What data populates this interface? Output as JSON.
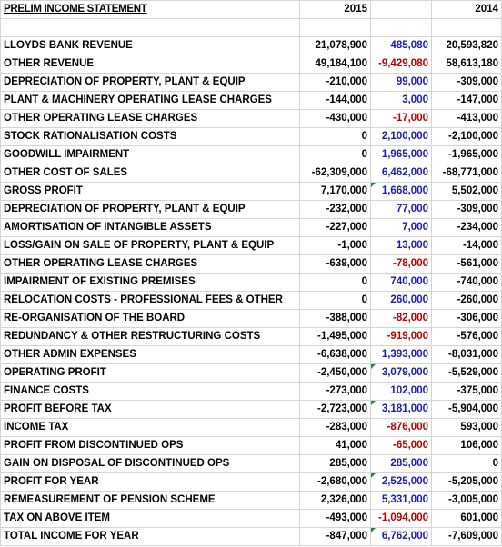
{
  "header": {
    "title": "PRELIM INCOME STATEMENT",
    "col_2015": "2015",
    "col_2014": "2014"
  },
  "rows": [
    {
      "label": "LLOYDS BANK REVENUE",
      "v2015": "21,078,900",
      "diff": "485,080",
      "diff_sign": "pos",
      "v2014": "20,593,820",
      "flag": false
    },
    {
      "label": "OTHER REVENUE",
      "v2015": "49,184,100",
      "diff": "-9,429,080",
      "diff_sign": "neg",
      "v2014": "58,613,180",
      "flag": false
    },
    {
      "label": "DEPRECIATION OF PROPERTY, PLANT & EQUIP",
      "v2015": "-210,000",
      "diff": "99,000",
      "diff_sign": "pos",
      "v2014": "-309,000",
      "flag": false
    },
    {
      "label": "PLANT & MACHINERY OPERATING LEASE CHARGES",
      "v2015": "-144,000",
      "diff": "3,000",
      "diff_sign": "pos",
      "v2014": "-147,000",
      "flag": false
    },
    {
      "label": "OTHER OPERATING LEASE CHARGES",
      "v2015": "-430,000",
      "diff": "-17,000",
      "diff_sign": "neg",
      "v2014": "-413,000",
      "flag": false
    },
    {
      "label": "STOCK RATIONALISATION COSTS",
      "v2015": "0",
      "diff": "2,100,000",
      "diff_sign": "pos",
      "v2014": "-2,100,000",
      "flag": false
    },
    {
      "label": "GOODWILL IMPAIRMENT",
      "v2015": "0",
      "diff": "1,965,000",
      "diff_sign": "pos",
      "v2014": "-1,965,000",
      "flag": false
    },
    {
      "label": "OTHER COST OF SALES",
      "v2015": "-62,309,000",
      "diff": "6,462,000",
      "diff_sign": "pos",
      "v2014": "-68,771,000",
      "flag": false
    },
    {
      "label": "GROSS PROFIT",
      "v2015": "7,170,000",
      "diff": "1,668,000",
      "diff_sign": "pos",
      "v2014": "5,502,000",
      "flag": true
    },
    {
      "label": "DEPRECIATION OF PROPERTY, PLANT & EQUIP",
      "v2015": "-232,000",
      "diff": "77,000",
      "diff_sign": "pos",
      "v2014": "-309,000",
      "flag": false
    },
    {
      "label": "AMORTISATION OF INTANGIBLE ASSETS",
      "v2015": "-227,000",
      "diff": "7,000",
      "diff_sign": "pos",
      "v2014": "-234,000",
      "flag": false
    },
    {
      "label": "LOSS/GAIN ON SALE OF PROPERTY, PLANT & EQUIP",
      "v2015": "-1,000",
      "diff": "13,000",
      "diff_sign": "pos",
      "v2014": "-14,000",
      "flag": false
    },
    {
      "label": "OTHER OPERATING LEASE CHARGES",
      "v2015": "-639,000",
      "diff": "-78,000",
      "diff_sign": "neg",
      "v2014": "-561,000",
      "flag": false
    },
    {
      "label": "IMPAIRMENT OF EXISTING PREMISES",
      "v2015": "0",
      "diff": "740,000",
      "diff_sign": "pos",
      "v2014": "-740,000",
      "flag": false
    },
    {
      "label": "RELOCATION COSTS - PROFESSIONAL FEES & OTHER",
      "v2015": "0",
      "diff": "260,000",
      "diff_sign": "pos",
      "v2014": "-260,000",
      "flag": false
    },
    {
      "label": "RE-ORGANISATION OF THE BOARD",
      "v2015": "-388,000",
      "diff": "-82,000",
      "diff_sign": "neg",
      "v2014": "-306,000",
      "flag": false
    },
    {
      "label": "REDUNDANCY & OTHER RESTRUCTURING COSTS",
      "v2015": "-1,495,000",
      "diff": "-919,000",
      "diff_sign": "neg",
      "v2014": "-576,000",
      "flag": false
    },
    {
      "label": "OTHER ADMIN EXPENSES",
      "v2015": "-6,638,000",
      "diff": "1,393,000",
      "diff_sign": "pos",
      "v2014": "-8,031,000",
      "flag": false
    },
    {
      "label": "OPERATING PROFIT",
      "v2015": "-2,450,000",
      "diff": "3,079,000",
      "diff_sign": "pos",
      "v2014": "-5,529,000",
      "flag": true
    },
    {
      "label": "FINANCE COSTS",
      "v2015": "-273,000",
      "diff": "102,000",
      "diff_sign": "pos",
      "v2014": "-375,000",
      "flag": false
    },
    {
      "label": "PROFIT BEFORE TAX",
      "v2015": "-2,723,000",
      "diff": "3,181,000",
      "diff_sign": "pos",
      "v2014": "-5,904,000",
      "flag": true
    },
    {
      "label": "INCOME TAX",
      "v2015": "-283,000",
      "diff": "-876,000",
      "diff_sign": "neg",
      "v2014": "593,000",
      "flag": false
    },
    {
      "label": "PROFIT FROM DISCONTINUED OPS",
      "v2015": "41,000",
      "diff": "-65,000",
      "diff_sign": "neg",
      "v2014": "106,000",
      "flag": false
    },
    {
      "label": "GAIN ON DISPOSAL OF DISCONTINUED OPS",
      "v2015": "285,000",
      "diff": "285,000",
      "diff_sign": "pos",
      "v2014": "0",
      "flag": false
    },
    {
      "label": "PROFIT FOR YEAR",
      "v2015": "-2,680,000",
      "diff": "2,525,000",
      "diff_sign": "pos",
      "v2014": "-5,205,000",
      "flag": true
    },
    {
      "label": "REMEASUREMENT OF PENSION SCHEME",
      "v2015": "2,326,000",
      "diff": "5,331,000",
      "diff_sign": "pos",
      "v2014": "-3,005,000",
      "flag": false
    },
    {
      "label": "TAX ON ABOVE ITEM",
      "v2015": "-493,000",
      "diff": "-1,094,000",
      "diff_sign": "neg",
      "v2014": "601,000",
      "flag": false
    },
    {
      "label": "TOTAL INCOME FOR YEAR",
      "v2015": "-847,000",
      "diff": "6,762,000",
      "diff_sign": "pos",
      "v2014": "-7,609,000",
      "flag": true
    }
  ],
  "colors": {
    "positive_diff": "#1a1ab0",
    "negative_diff": "#b00000",
    "formula_flag": "#1e8a3a",
    "gridline": "#d4d4d4"
  }
}
